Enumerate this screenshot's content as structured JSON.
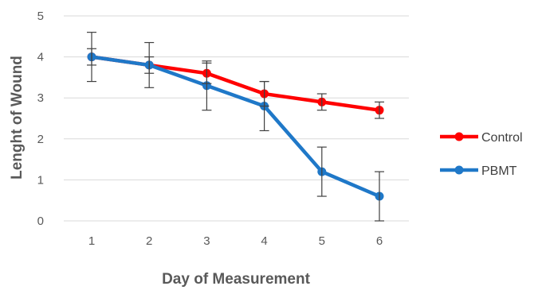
{
  "chart_data": {
    "type": "line",
    "x": [
      1,
      2,
      3,
      4,
      5,
      6
    ],
    "xlabel": "Day of Measurement",
    "ylabel": "Lenght of Wound",
    "ylim": [
      0,
      5
    ],
    "yticks": [
      0,
      1,
      2,
      3,
      4,
      5
    ],
    "grid": true,
    "legend": "right",
    "series": [
      {
        "name": "Control",
        "color": "#ff0000",
        "values": [
          4.0,
          3.8,
          3.6,
          3.1,
          2.9,
          2.7
        ],
        "error": [
          0.2,
          0.2,
          0.25,
          0.3,
          0.2,
          0.2
        ]
      },
      {
        "name": "PBMT",
        "color": "#1f78c8",
        "values": [
          4.0,
          3.8,
          3.3,
          2.8,
          1.2,
          0.6
        ],
        "error": [
          0.6,
          0.55,
          0.6,
          0.6,
          0.6,
          0.6
        ]
      }
    ]
  }
}
